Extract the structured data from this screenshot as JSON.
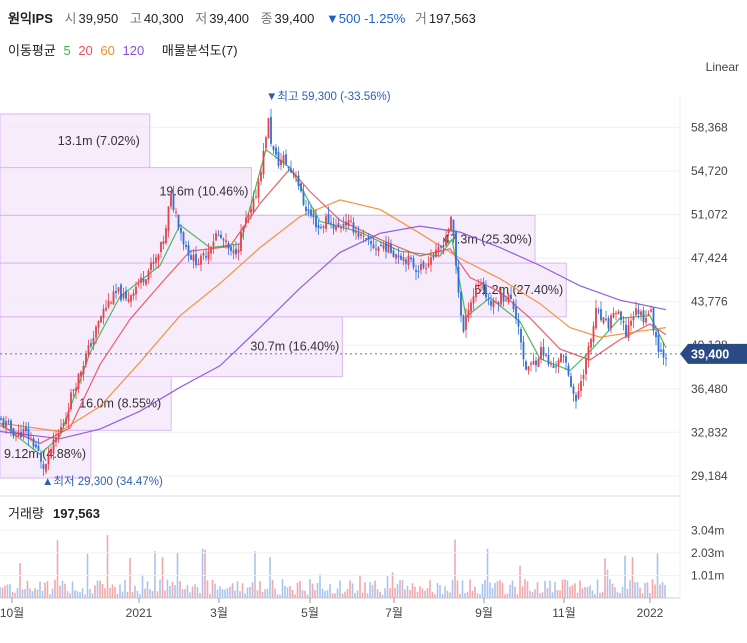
{
  "header": {
    "name": "원익IPS",
    "open_label": "시",
    "open": "39,950",
    "high_label": "고",
    "high": "40,300",
    "low_label": "저",
    "low": "39,400",
    "close_label": "종",
    "close": "39,400",
    "change": "▼500 -1.25%",
    "vol_label": "거",
    "volume": "197,563"
  },
  "ma_legend": {
    "title": "이동평균",
    "periods": [
      "5",
      "20",
      "60",
      "120"
    ],
    "colors": [
      "#3cb44b",
      "#e8505b",
      "#f28c28",
      "#8a4fd8"
    ],
    "profile": "매물분석도(7)"
  },
  "scale_mode": "Linear",
  "chart_data": {
    "type": "candlestick",
    "y_ticks": [
      "58,368",
      "54,720",
      "51,072",
      "47,424",
      "43,776",
      "40,128",
      "36,480",
      "32,832",
      "29,184"
    ],
    "ylim": [
      28000,
      61000
    ],
    "x_ticks": [
      "10월",
      "2021",
      "3월",
      "5월",
      "7월",
      "9월",
      "11월",
      "2022"
    ],
    "current_price": "39,400",
    "max_label": "▼최고 59,300 (-33.56%)",
    "min_label": "▲최저 29,300 (34.47%)",
    "volume_profile": [
      {
        "label": "13.1m (7.02%)",
        "low": 55000,
        "high": 59500,
        "share": 0.28
      },
      {
        "label": "19.6m (10.46%)",
        "low": 51000,
        "high": 55000,
        "share": 0.47
      },
      {
        "label": "47.3m (25.30%)",
        "low": 47000,
        "high": 51000,
        "share": 1.0
      },
      {
        "label": "51.2m (27.40%)",
        "low": 42500,
        "high": 47000,
        "share": 1.08
      },
      {
        "label": "30.7m (16.40%)",
        "low": 37500,
        "high": 42500,
        "share": 0.64
      },
      {
        "label": "16.0m (8.55%)",
        "low": 33000,
        "high": 37500,
        "share": 0.32
      },
      {
        "label": "9.12m (4.88%)",
        "low": 29000,
        "high": 33000,
        "share": 0.17
      }
    ],
    "volume_label": "거래량",
    "volume_value": "197,563",
    "volume_ticks": [
      "3.04m",
      "2.03m",
      "1.01m"
    ],
    "volume_max": 3500000,
    "series_path": [
      [
        0,
        33800
      ],
      [
        8,
        33400
      ],
      [
        16,
        32600
      ],
      [
        24,
        32900
      ],
      [
        32,
        32100
      ],
      [
        38,
        31300
      ],
      [
        42,
        29800
      ],
      [
        46,
        30100
      ],
      [
        52,
        31500
      ],
      [
        60,
        33000
      ],
      [
        66,
        34200
      ],
      [
        72,
        36200
      ],
      [
        78,
        37400
      ],
      [
        84,
        38800
      ],
      [
        90,
        40100
      ],
      [
        96,
        41400
      ],
      [
        102,
        42800
      ],
      [
        110,
        43900
      ],
      [
        118,
        44600
      ],
      [
        126,
        43800
      ],
      [
        134,
        44900
      ],
      [
        142,
        45600
      ],
      [
        150,
        46600
      ],
      [
        158,
        47500
      ],
      [
        166,
        49700
      ],
      [
        170,
        52600
      ],
      [
        176,
        51200
      ],
      [
        184,
        48700
      ],
      [
        192,
        47400
      ],
      [
        200,
        47100
      ],
      [
        208,
        48100
      ],
      [
        216,
        49400
      ],
      [
        224,
        48800
      ],
      [
        232,
        47600
      ],
      [
        238,
        48400
      ],
      [
        244,
        50200
      ],
      [
        252,
        51400
      ],
      [
        258,
        53600
      ],
      [
        264,
        56400
      ],
      [
        268,
        59200
      ],
      [
        272,
        56600
      ],
      [
        278,
        55400
      ],
      [
        284,
        55800
      ],
      [
        290,
        54700
      ],
      [
        296,
        54600
      ],
      [
        302,
        52300
      ],
      [
        308,
        51300
      ],
      [
        314,
        50600
      ],
      [
        320,
        49800
      ],
      [
        326,
        50700
      ],
      [
        332,
        50300
      ],
      [
        338,
        49900
      ],
      [
        344,
        50500
      ],
      [
        352,
        50100
      ],
      [
        360,
        49300
      ],
      [
        368,
        48600
      ],
      [
        376,
        48300
      ],
      [
        384,
        48500
      ],
      [
        392,
        48000
      ],
      [
        400,
        47700
      ],
      [
        408,
        47300
      ],
      [
        416,
        46600
      ],
      [
        424,
        46700
      ],
      [
        430,
        47500
      ],
      [
        436,
        47700
      ],
      [
        442,
        48400
      ],
      [
        448,
        49900
      ],
      [
        452,
        50700
      ],
      [
        456,
        46800
      ],
      [
        460,
        43400
      ],
      [
        464,
        40900
      ],
      [
        468,
        43400
      ],
      [
        474,
        44400
      ],
      [
        480,
        45600
      ],
      [
        486,
        44300
      ],
      [
        492,
        43400
      ],
      [
        500,
        44100
      ],
      [
        508,
        44300
      ],
      [
        514,
        43200
      ],
      [
        520,
        41400
      ],
      [
        524,
        38100
      ],
      [
        530,
        38300
      ],
      [
        536,
        38900
      ],
      [
        542,
        39900
      ],
      [
        548,
        38600
      ],
      [
        554,
        38200
      ],
      [
        560,
        39300
      ],
      [
        566,
        38500
      ],
      [
        572,
        36700
      ],
      [
        576,
        35100
      ],
      [
        580,
        37000
      ],
      [
        584,
        38200
      ],
      [
        590,
        40200
      ],
      [
        596,
        42900
      ],
      [
        602,
        42200
      ],
      [
        608,
        41700
      ],
      [
        614,
        43100
      ],
      [
        620,
        42300
      ],
      [
        626,
        41100
      ],
      [
        632,
        42600
      ],
      [
        638,
        43100
      ],
      [
        644,
        42400
      ],
      [
        650,
        43200
      ],
      [
        654,
        41500
      ],
      [
        658,
        40100
      ],
      [
        662,
        39400
      ],
      [
        666,
        39400
      ]
    ],
    "ma_series": [
      {
        "period": "5",
        "values": [
          [
            0,
            33600
          ],
          [
            40,
            31000
          ],
          [
            60,
            32500
          ],
          [
            90,
            39500
          ],
          [
            120,
            44200
          ],
          [
            160,
            46800
          ],
          [
            180,
            50200
          ],
          [
            210,
            48300
          ],
          [
            240,
            48600
          ],
          [
            266,
            56500
          ],
          [
            290,
            55000
          ],
          [
            320,
            50500
          ],
          [
            360,
            49600
          ],
          [
            400,
            48000
          ],
          [
            440,
            47600
          ],
          [
            452,
            49000
          ],
          [
            466,
            42500
          ],
          [
            490,
            44100
          ],
          [
            520,
            42100
          ],
          [
            540,
            39000
          ],
          [
            570,
            38000
          ],
          [
            590,
            39600
          ],
          [
            620,
            42400
          ],
          [
            650,
            42600
          ],
          [
            666,
            39900
          ]
        ]
      },
      {
        "period": "20",
        "values": [
          [
            0,
            33400
          ],
          [
            40,
            31900
          ],
          [
            70,
            33200
          ],
          [
            100,
            38500
          ],
          [
            130,
            42300
          ],
          [
            160,
            45200
          ],
          [
            190,
            48000
          ],
          [
            230,
            48400
          ],
          [
            260,
            52000
          ],
          [
            290,
            54900
          ],
          [
            310,
            53000
          ],
          [
            340,
            50600
          ],
          [
            380,
            49000
          ],
          [
            420,
            47600
          ],
          [
            450,
            48200
          ],
          [
            470,
            45800
          ],
          [
            500,
            44600
          ],
          [
            530,
            42400
          ],
          [
            560,
            39800
          ],
          [
            590,
            38900
          ],
          [
            620,
            40600
          ],
          [
            650,
            41900
          ],
          [
            666,
            41000
          ]
        ]
      },
      {
        "period": "60",
        "values": [
          [
            0,
            33600
          ],
          [
            60,
            32900
          ],
          [
            100,
            35000
          ],
          [
            140,
            38700
          ],
          [
            180,
            42600
          ],
          [
            220,
            45300
          ],
          [
            260,
            48300
          ],
          [
            300,
            50900
          ],
          [
            340,
            52300
          ],
          [
            380,
            51500
          ],
          [
            420,
            49500
          ],
          [
            460,
            47400
          ],
          [
            500,
            45700
          ],
          [
            540,
            43600
          ],
          [
            570,
            41600
          ],
          [
            600,
            40800
          ],
          [
            640,
            41300
          ],
          [
            666,
            41600
          ]
        ]
      },
      {
        "period": "120",
        "values": [
          [
            0,
            32900
          ],
          [
            60,
            32300
          ],
          [
            100,
            33100
          ],
          [
            140,
            34600
          ],
          [
            180,
            36600
          ],
          [
            220,
            38400
          ],
          [
            260,
            41600
          ],
          [
            300,
            44900
          ],
          [
            340,
            47900
          ],
          [
            380,
            49500
          ],
          [
            420,
            50100
          ],
          [
            460,
            49600
          ],
          [
            500,
            48300
          ],
          [
            540,
            46800
          ],
          [
            580,
            45100
          ],
          [
            620,
            43900
          ],
          [
            666,
            43100
          ]
        ]
      }
    ]
  }
}
